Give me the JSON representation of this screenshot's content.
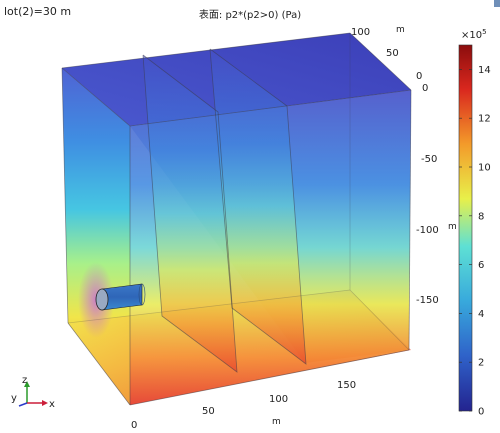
{
  "header": {
    "left_label": "lot(2)=30 m",
    "title": "表面: p2*(p2>0) (Pa)"
  },
  "axes": {
    "depth_ticks": [
      "100",
      "50",
      "0"
    ],
    "depth_unit": "m",
    "z_ticks": [
      "0",
      "-50",
      "-100",
      "-150"
    ],
    "z_unit": "m",
    "x_ticks": [
      "0",
      "50",
      "100",
      "150"
    ],
    "x_unit": "m"
  },
  "colorbar": {
    "multiplier": "×10",
    "exponent": "5",
    "ticks": [
      "14",
      "12",
      "10",
      "8",
      "6",
      "4",
      "2",
      "0"
    ],
    "min": 0,
    "max": 15,
    "colors": [
      "#23238f",
      "#2f62c9",
      "#38a9dc",
      "#5ee0d4",
      "#e8f04a",
      "#f39a2a",
      "#d9271e",
      "#8b0d0d"
    ]
  },
  "triad": {
    "z": "z",
    "y": "y",
    "x": "x"
  }
}
